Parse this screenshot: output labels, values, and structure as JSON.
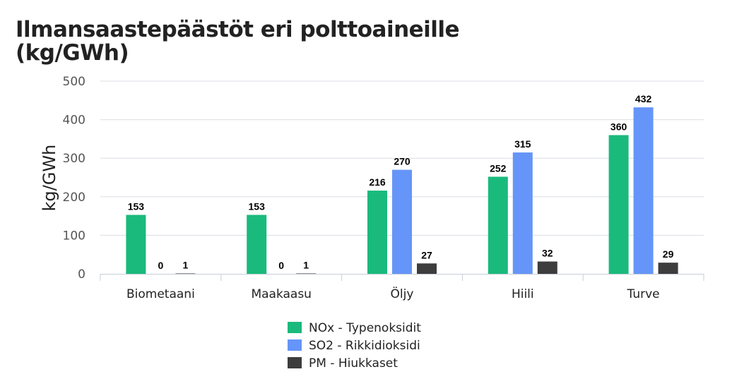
{
  "chart_data": {
    "type": "bar",
    "title_line1": "Ilmansaastepäästöt eri polttoaineille",
    "title_line2": "(kg/GWh)",
    "ylabel": "kg/GWh",
    "xlabel": "",
    "ylim": [
      0,
      500
    ],
    "yticks": [
      0,
      100,
      200,
      300,
      400,
      500
    ],
    "grid": true,
    "legend_position": "bottom",
    "categories": [
      "Biometaani",
      "Maakaasu",
      "Öljy",
      "Hiili",
      "Turve"
    ],
    "series": [
      {
        "name": "NOx - Typenoksidit",
        "color": "#1aba7c",
        "values": [
          153,
          153,
          216,
          252,
          360
        ]
      },
      {
        "name": "SO2 - Rikkidioksidi",
        "color": "#6595f8",
        "values": [
          0,
          0,
          270,
          315,
          432
        ]
      },
      {
        "name": "PM - Hiukkaset",
        "color": "#3d3d3d",
        "values": [
          1,
          1,
          27,
          32,
          29
        ]
      }
    ]
  }
}
